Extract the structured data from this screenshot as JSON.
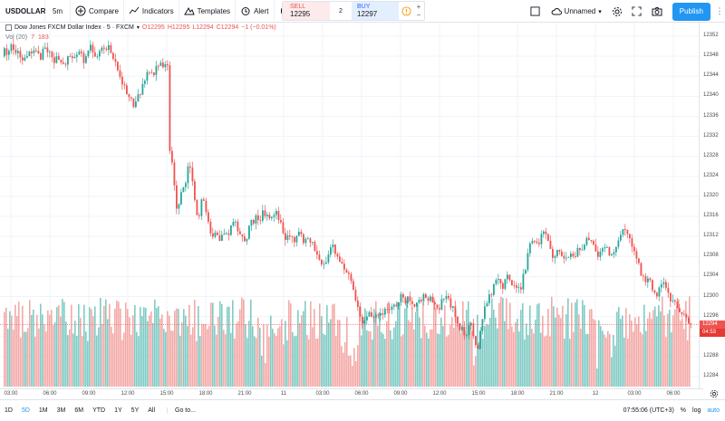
{
  "toolbar": {
    "symbol": "USDOLLAR",
    "interval": "5m",
    "compare": "Compare",
    "indicators": "Indicators",
    "templates": "Templates",
    "alert": "Alert",
    "layout_name": "Unnamed",
    "publish": "Publish"
  },
  "trade": {
    "sell_label": "SELL",
    "sell_price": "12295",
    "quantity": "2",
    "buy_label": "BUY",
    "buy_price": "12297",
    "spin_up": "+",
    "spin_down": "−"
  },
  "legend": {
    "title": "Dow Jones FXCM Dollar Index · 5 · FXCM",
    "open": "O12295",
    "high": "H12295",
    "low": "L12294",
    "close": "C12294",
    "change": "−1 (−0.01%)"
  },
  "volume_legend": {
    "name": "Vol (20)",
    "v1": "7",
    "v2": "183"
  },
  "price_axis": {
    "labels": [
      "12352",
      "12348",
      "12344",
      "12340",
      "12336",
      "12332",
      "12328",
      "12324",
      "12320",
      "12316",
      "12312",
      "12308",
      "12304",
      "12300",
      "12296",
      "12292",
      "12288",
      "12284"
    ],
    "last_price": "12294",
    "countdown": "04:53"
  },
  "time_axis": {
    "labels": [
      "03:00",
      "06:00",
      "09:00",
      "12:00",
      "15:00",
      "18:00",
      "21:00",
      "11",
      "03:00",
      "06:00",
      "09:00",
      "12:00",
      "15:00",
      "18:00",
      "21:00",
      "12",
      "03:00",
      "06:00"
    ]
  },
  "bottom": {
    "ranges": [
      "1D",
      "5D",
      "1M",
      "3M",
      "6M",
      "YTD",
      "1Y",
      "5Y",
      "All"
    ],
    "active_range": "5D",
    "goto": "Go to...",
    "clock": "07:55:06 (UTC+3)",
    "percent": "%",
    "log": "log",
    "auto": "auto"
  },
  "colors": {
    "up": "#26a69a",
    "down": "#ef5350",
    "vol_up": "#80cbc4",
    "vol_down": "#f4a9a7",
    "grid": "#f0f3fa",
    "accent": "#2196f3"
  },
  "chart_data": {
    "type": "candlestick",
    "symbol": "Dow Jones FXCM Dollar Index",
    "ylim": [
      12282,
      12354
    ],
    "close_path": [
      [
        0,
        12347
      ],
      [
        4,
        12349
      ],
      [
        8,
        12348
      ],
      [
        12,
        12350
      ],
      [
        18,
        12349
      ],
      [
        22,
        12348
      ],
      [
        26,
        12347
      ],
      [
        30,
        12349
      ],
      [
        34,
        12348
      ],
      [
        38,
        12349
      ],
      [
        44,
        12348
      ],
      [
        48,
        12350
      ],
      [
        52,
        12349
      ],
      [
        56,
        12348
      ],
      [
        60,
        12347
      ],
      [
        64,
        12348
      ],
      [
        68,
        12346
      ],
      [
        72,
        12347
      ],
      [
        76,
        12348
      ],
      [
        80,
        12347
      ],
      [
        84,
        12348
      ],
      [
        88,
        12349
      ],
      [
        92,
        12347
      ],
      [
        96,
        12349
      ],
      [
        100,
        12350
      ],
      [
        104,
        12348
      ],
      [
        108,
        12349
      ],
      [
        112,
        12350
      ],
      [
        116,
        12349
      ],
      [
        120,
        12350
      ],
      [
        124,
        12348
      ],
      [
        128,
        12346
      ],
      [
        132,
        12344
      ],
      [
        136,
        12342
      ],
      [
        140,
        12340
      ],
      [
        144,
        12339
      ],
      [
        148,
        12338
      ],
      [
        152,
        12340
      ],
      [
        156,
        12342
      ],
      [
        160,
        12344
      ],
      [
        164,
        12345
      ],
      [
        168,
        12344
      ],
      [
        172,
        12346
      ],
      [
        176,
        12347
      ],
      [
        180,
        12346
      ],
      [
        184,
        12346
      ],
      [
        186,
        12330
      ],
      [
        188,
        12327
      ],
      [
        190,
        12326
      ],
      [
        192,
        12321
      ],
      [
        194,
        12318
      ],
      [
        196,
        12317
      ],
      [
        198,
        12320
      ],
      [
        200,
        12322
      ],
      [
        202,
        12321
      ],
      [
        204,
        12323
      ],
      [
        206,
        12325
      ],
      [
        208,
        12327
      ],
      [
        210,
        12325
      ],
      [
        212,
        12322
      ],
      [
        214,
        12319
      ],
      [
        216,
        12317
      ],
      [
        218,
        12315
      ],
      [
        222,
        12320
      ],
      [
        226,
        12318
      ],
      [
        230,
        12314
      ],
      [
        234,
        12312
      ],
      [
        238,
        12313
      ],
      [
        242,
        12311
      ],
      [
        246,
        12313
      ],
      [
        250,
        12312
      ],
      [
        254,
        12314
      ],
      [
        258,
        12315
      ],
      [
        262,
        12313
      ],
      [
        266,
        12312
      ],
      [
        270,
        12311
      ],
      [
        274,
        12314
      ],
      [
        278,
        12315
      ],
      [
        282,
        12316
      ],
      [
        286,
        12315
      ],
      [
        290,
        12317
      ],
      [
        294,
        12316
      ],
      [
        298,
        12315
      ],
      [
        302,
        12317
      ],
      [
        306,
        12316
      ],
      [
        310,
        12314
      ],
      [
        314,
        12312
      ],
      [
        318,
        12313
      ],
      [
        322,
        12311
      ],
      [
        326,
        12312
      ],
      [
        330,
        12313
      ],
      [
        334,
        12311
      ],
      [
        338,
        12312
      ],
      [
        342,
        12311
      ],
      [
        346,
        12310
      ],
      [
        350,
        12308
      ],
      [
        354,
        12306
      ],
      [
        358,
        12307
      ],
      [
        362,
        12309
      ],
      [
        366,
        12310
      ],
      [
        370,
        12308
      ],
      [
        374,
        12307
      ],
      [
        378,
        12306
      ],
      [
        382,
        12305
      ],
      [
        386,
        12303
      ],
      [
        390,
        12300
      ],
      [
        394,
        12298
      ],
      [
        398,
        12294
      ],
      [
        402,
        12295
      ],
      [
        406,
        12297
      ],
      [
        410,
        12296
      ],
      [
        414,
        12297
      ],
      [
        418,
        12296
      ],
      [
        422,
        12297
      ],
      [
        426,
        12298
      ],
      [
        430,
        12297
      ],
      [
        434,
        12298
      ],
      [
        438,
        12299
      ],
      [
        442,
        12300
      ],
      [
        446,
        12299
      ],
      [
        450,
        12300
      ],
      [
        454,
        12299
      ],
      [
        458,
        12298
      ],
      [
        462,
        12299
      ],
      [
        466,
        12300
      ],
      [
        470,
        12299
      ],
      [
        474,
        12300
      ],
      [
        478,
        12298
      ],
      [
        482,
        12297
      ],
      [
        486,
        12299
      ],
      [
        490,
        12300
      ],
      [
        494,
        12299
      ],
      [
        498,
        12298
      ],
      [
        502,
        12296
      ],
      [
        506,
        12294
      ],
      [
        510,
        12293
      ],
      [
        514,
        12292
      ],
      [
        518,
        12295
      ],
      [
        522,
        12291
      ],
      [
        526,
        12289
      ],
      [
        530,
        12295
      ],
      [
        534,
        12298
      ],
      [
        538,
        12300
      ],
      [
        542,
        12301
      ],
      [
        546,
        12303
      ],
      [
        550,
        12304
      ],
      [
        554,
        12302
      ],
      [
        558,
        12305
      ],
      [
        562,
        12303
      ],
      [
        566,
        12302
      ],
      [
        570,
        12301
      ],
      [
        574,
        12302
      ],
      [
        578,
        12305
      ],
      [
        582,
        12309
      ],
      [
        586,
        12312
      ],
      [
        590,
        12310
      ],
      [
        594,
        12311
      ],
      [
        598,
        12314
      ],
      [
        602,
        12312
      ],
      [
        606,
        12309
      ],
      [
        610,
        12308
      ],
      [
        614,
        12310
      ],
      [
        618,
        12309
      ],
      [
        622,
        12307
      ],
      [
        626,
        12308
      ],
      [
        630,
        12309
      ],
      [
        634,
        12308
      ],
      [
        638,
        12310
      ],
      [
        642,
        12309
      ],
      [
        646,
        12311
      ],
      [
        650,
        12312
      ],
      [
        654,
        12310
      ],
      [
        658,
        12308
      ],
      [
        662,
        12309
      ],
      [
        666,
        12310
      ],
      [
        670,
        12309
      ],
      [
        674,
        12308
      ],
      [
        678,
        12309
      ],
      [
        682,
        12311
      ],
      [
        686,
        12313
      ],
      [
        690,
        12313
      ],
      [
        694,
        12311
      ],
      [
        698,
        12309
      ],
      [
        702,
        12307
      ],
      [
        706,
        12305
      ],
      [
        710,
        12303
      ],
      [
        714,
        12304
      ],
      [
        718,
        12302
      ],
      [
        722,
        12300
      ],
      [
        726,
        12301
      ],
      [
        730,
        12303
      ],
      [
        734,
        12302
      ],
      [
        738,
        12299
      ],
      [
        742,
        12300
      ],
      [
        746,
        12298
      ],
      [
        750,
        12297
      ],
      [
        754,
        12296
      ],
      [
        758,
        12295
      ],
      [
        762,
        12294
      ]
    ]
  }
}
